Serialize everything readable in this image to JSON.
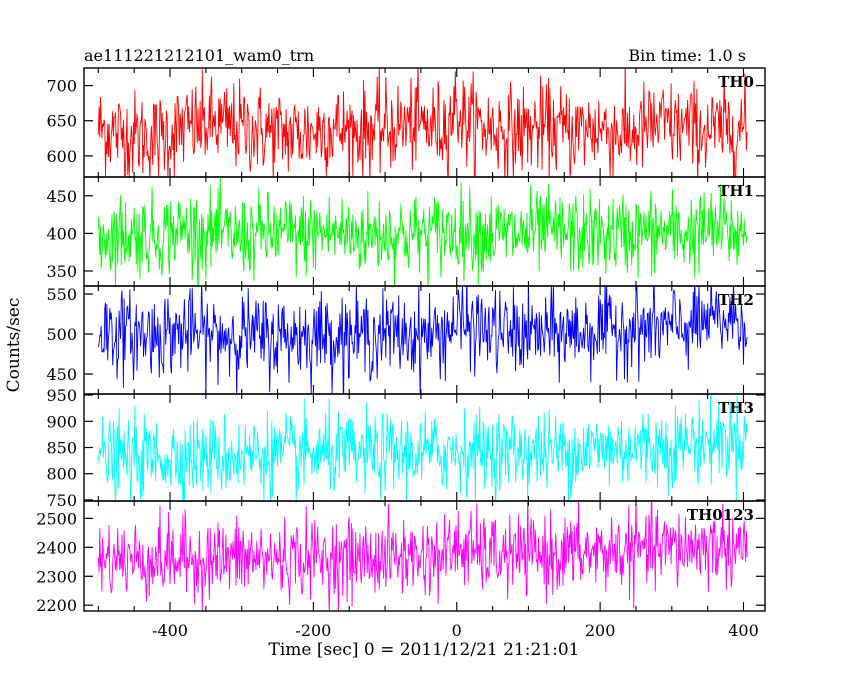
{
  "header": {
    "title": "ae111221212101_wam0_trn",
    "bin_time": "Bin time: 1.0 s"
  },
  "axes": {
    "xlabel": "Time [sec] 0 = 2011/12/21 21:21:01",
    "ylabel": "Counts/sec",
    "xlim": [
      -520,
      430
    ],
    "xticks": [
      -400,
      -200,
      0,
      200,
      400
    ]
  },
  "chart_data": {
    "type": "line",
    "title": "ae111221212101_wam0_trn",
    "subtitle": "Bin time: 1.0 s",
    "xlabel": "Time [sec] 0 = 2011/12/21 21:21:01",
    "ylabel": "Counts/sec",
    "x_range": [
      -500,
      405
    ],
    "bin_time_s": 1.0,
    "series": [
      {
        "name": "TH0",
        "color": "#ff0000",
        "ylim": [
          570,
          725
        ],
        "yticks": [
          600,
          650,
          700
        ],
        "mean": 635,
        "noise": 32,
        "step_at_x": 0,
        "step_mean": 650,
        "points": [
          [
            -500,
            640
          ],
          [
            -460,
            630
          ],
          [
            -420,
            625
          ],
          [
            -380,
            640
          ],
          [
            -340,
            645
          ],
          [
            -300,
            640
          ],
          [
            -260,
            635
          ],
          [
            -220,
            630
          ],
          [
            -180,
            640
          ],
          [
            -140,
            635
          ],
          [
            -100,
            640
          ],
          [
            -60,
            645
          ],
          [
            -20,
            640
          ],
          [
            0,
            670
          ],
          [
            10,
            650
          ],
          [
            40,
            640
          ],
          [
            80,
            635
          ],
          [
            120,
            640
          ],
          [
            160,
            635
          ],
          [
            200,
            640
          ],
          [
            240,
            630
          ],
          [
            280,
            645
          ],
          [
            320,
            640
          ],
          [
            360,
            635
          ],
          [
            400,
            640
          ]
        ]
      },
      {
        "name": "TH1",
        "color": "#00ff00",
        "ylim": [
          330,
          475
        ],
        "yticks": [
          350,
          400,
          450
        ],
        "mean": 398,
        "noise": 27,
        "points": [
          [
            -500,
            395
          ],
          [
            -460,
            400
          ],
          [
            -420,
            398
          ],
          [
            -380,
            405
          ],
          [
            -340,
            400
          ],
          [
            -300,
            395
          ],
          [
            -260,
            400
          ],
          [
            -220,
            398
          ],
          [
            -180,
            402
          ],
          [
            -140,
            398
          ],
          [
            -100,
            400
          ],
          [
            -60,
            398
          ],
          [
            -20,
            400
          ],
          [
            0,
            405
          ],
          [
            40,
            400
          ],
          [
            80,
            398
          ],
          [
            120,
            402
          ],
          [
            160,
            400
          ],
          [
            200,
            398
          ],
          [
            240,
            400
          ],
          [
            280,
            402
          ],
          [
            320,
            400
          ],
          [
            360,
            405
          ],
          [
            400,
            400
          ]
        ]
      },
      {
        "name": "TH2",
        "color": "#0000ff",
        "ylim": [
          425,
          560
        ],
        "yticks": [
          450,
          500,
          550
        ],
        "mean": 500,
        "noise": 26,
        "points": [
          [
            -500,
            505
          ],
          [
            -460,
            500
          ],
          [
            -420,
            500
          ],
          [
            -380,
            502
          ],
          [
            -340,
            498
          ],
          [
            -300,
            500
          ],
          [
            -260,
            495
          ],
          [
            -220,
            498
          ],
          [
            -180,
            500
          ],
          [
            -140,
            497
          ],
          [
            -100,
            500
          ],
          [
            -60,
            498
          ],
          [
            -20,
            500
          ],
          [
            0,
            515
          ],
          [
            40,
            505
          ],
          [
            80,
            500
          ],
          [
            120,
            500
          ],
          [
            160,
            502
          ],
          [
            200,
            505
          ],
          [
            240,
            508
          ],
          [
            280,
            505
          ],
          [
            320,
            510
          ],
          [
            360,
            515
          ],
          [
            400,
            520
          ]
        ]
      },
      {
        "name": "TH3",
        "color": "#00ffff",
        "ylim": [
          748,
          952
        ],
        "yticks": [
          750,
          800,
          850,
          900,
          950
        ],
        "mean": 835,
        "noise": 38,
        "points": [
          [
            -500,
            830
          ],
          [
            -460,
            830
          ],
          [
            -420,
            832
          ],
          [
            -380,
            835
          ],
          [
            -340,
            832
          ],
          [
            -300,
            835
          ],
          [
            -260,
            838
          ],
          [
            -220,
            835
          ],
          [
            -180,
            838
          ],
          [
            -140,
            835
          ],
          [
            -100,
            838
          ],
          [
            -60,
            840
          ],
          [
            -20,
            840
          ],
          [
            0,
            845
          ],
          [
            40,
            842
          ],
          [
            80,
            845
          ],
          [
            120,
            842
          ],
          [
            160,
            845
          ],
          [
            200,
            848
          ],
          [
            240,
            850
          ],
          [
            280,
            852
          ],
          [
            320,
            858
          ],
          [
            360,
            862
          ],
          [
            400,
            870
          ]
        ]
      },
      {
        "name": "TH0123",
        "color": "#ff00ff",
        "ylim": [
          2180,
          2560
        ],
        "yticks": [
          2200,
          2300,
          2400,
          2500
        ],
        "mean": 2365,
        "noise": 68,
        "points": [
          [
            -500,
            2360
          ],
          [
            -460,
            2360
          ],
          [
            -420,
            2358
          ],
          [
            -380,
            2362
          ],
          [
            -340,
            2360
          ],
          [
            -300,
            2362
          ],
          [
            -260,
            2360
          ],
          [
            -220,
            2365
          ],
          [
            -180,
            2362
          ],
          [
            -140,
            2360
          ],
          [
            -100,
            2365
          ],
          [
            -60,
            2368
          ],
          [
            -20,
            2370
          ],
          [
            0,
            2400
          ],
          [
            40,
            2375
          ],
          [
            80,
            2372
          ],
          [
            120,
            2375
          ],
          [
            160,
            2380
          ],
          [
            200,
            2380
          ],
          [
            240,
            2390
          ],
          [
            280,
            2395
          ],
          [
            320,
            2400
          ],
          [
            360,
            2405
          ],
          [
            400,
            2410
          ]
        ]
      }
    ]
  }
}
